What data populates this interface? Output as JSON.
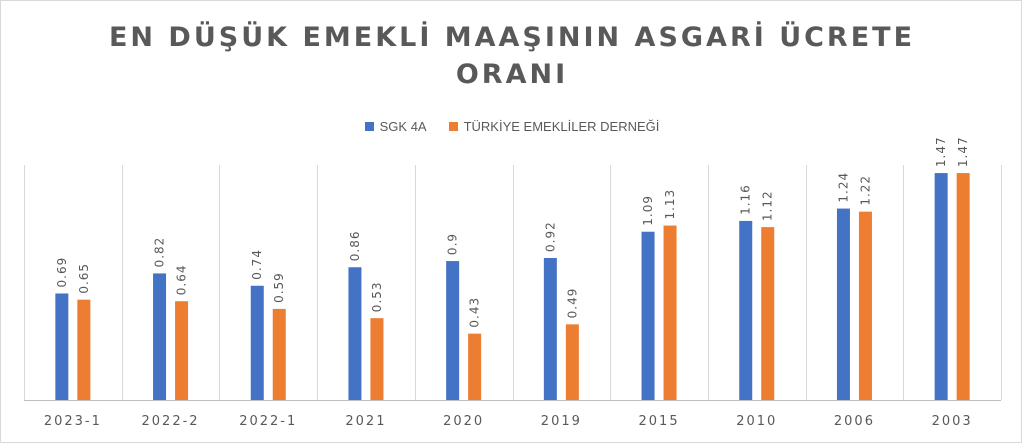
{
  "chart_data": {
    "type": "bar",
    "title_lines": [
      "EN DÜŞÜK EMEKLİ MAAŞININ ASGARİ ÜCRETE",
      "ORANI"
    ],
    "categories": [
      "2023-1",
      "2022-2",
      "2022-1",
      "2021",
      "2020",
      "2019",
      "2015",
      "2010",
      "2006",
      "2003"
    ],
    "series": [
      {
        "name": "SGK 4A",
        "color": "#4472C4",
        "values": [
          0.69,
          0.82,
          0.74,
          0.86,
          0.9,
          0.92,
          1.09,
          1.16,
          1.24,
          1.47
        ]
      },
      {
        "name": "TÜRKİYE EMEKLİLER DERNEĞİ",
        "color": "#ED7D31",
        "values": [
          0.65,
          0.64,
          0.59,
          0.53,
          0.43,
          0.49,
          1.13,
          1.12,
          1.22,
          1.47
        ]
      }
    ],
    "ylim": [
      0,
      1.6
    ],
    "grid": "vertical",
    "legend_position": "top"
  }
}
